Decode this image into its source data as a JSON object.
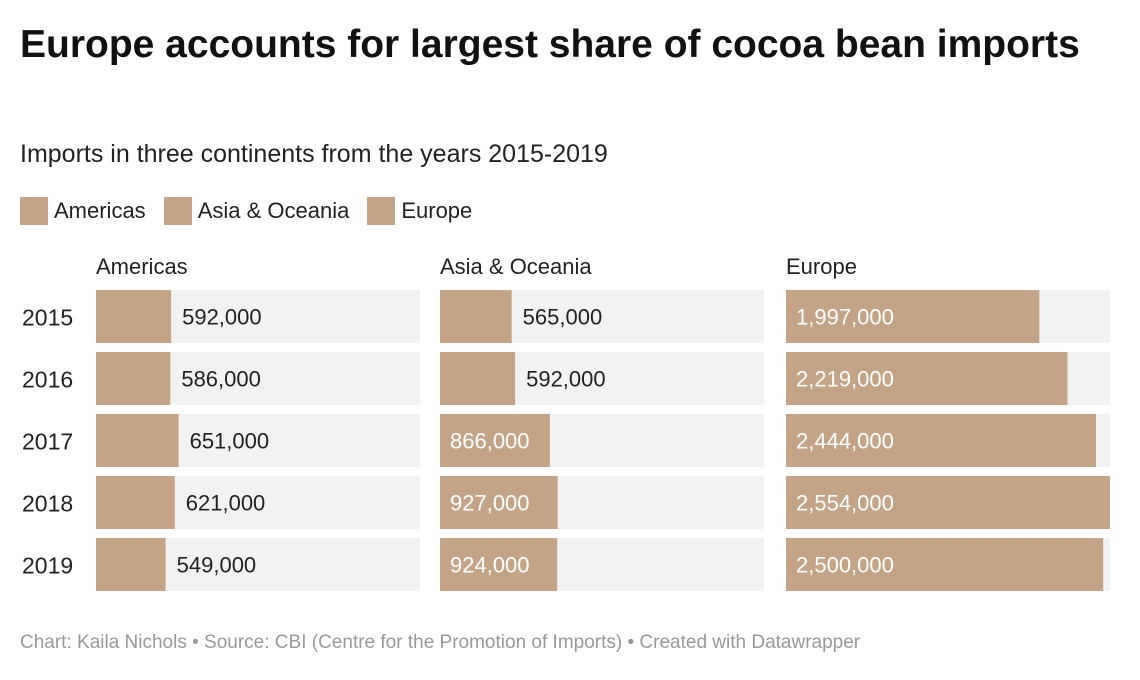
{
  "title": "Europe accounts for largest share of cocoa bean imports",
  "subtitle": "Imports in three continents from the years 2015-2019",
  "footer": "Chart: Kaila Nichols • Source: CBI (Centre for the Promotion of Imports) • Created with Datawrapper",
  "colors": {
    "bar": "#c4a484",
    "track": "#f2f2f2",
    "label_dark": "#222222",
    "label_light": "#ffffff"
  },
  "legend": [
    {
      "label": "Americas"
    },
    {
      "label": "Asia & Oceania"
    },
    {
      "label": "Europe"
    }
  ],
  "chart_data": {
    "type": "bar",
    "orientation": "horizontal",
    "layout": "small-multiples",
    "categories": [
      "2015",
      "2016",
      "2017",
      "2018",
      "2019"
    ],
    "xlim": [
      0,
      2554000
    ],
    "series": [
      {
        "name": "Americas",
        "values": [
          592000,
          586000,
          651000,
          621000,
          549000
        ],
        "labels": [
          "592,000",
          "586,000",
          "651,000",
          "621,000",
          "549,000"
        ]
      },
      {
        "name": "Asia & Oceania",
        "values": [
          565000,
          592000,
          866000,
          927000,
          924000
        ],
        "labels": [
          "565,000",
          "592,000",
          "866,000",
          "927,000",
          "924,000"
        ]
      },
      {
        "name": "Europe",
        "values": [
          1997000,
          2219000,
          2444000,
          2554000,
          2500000
        ],
        "labels": [
          "1,997,000",
          "2,219,000",
          "2,444,000",
          "2,554,000",
          "2,500,000"
        ]
      }
    ]
  }
}
